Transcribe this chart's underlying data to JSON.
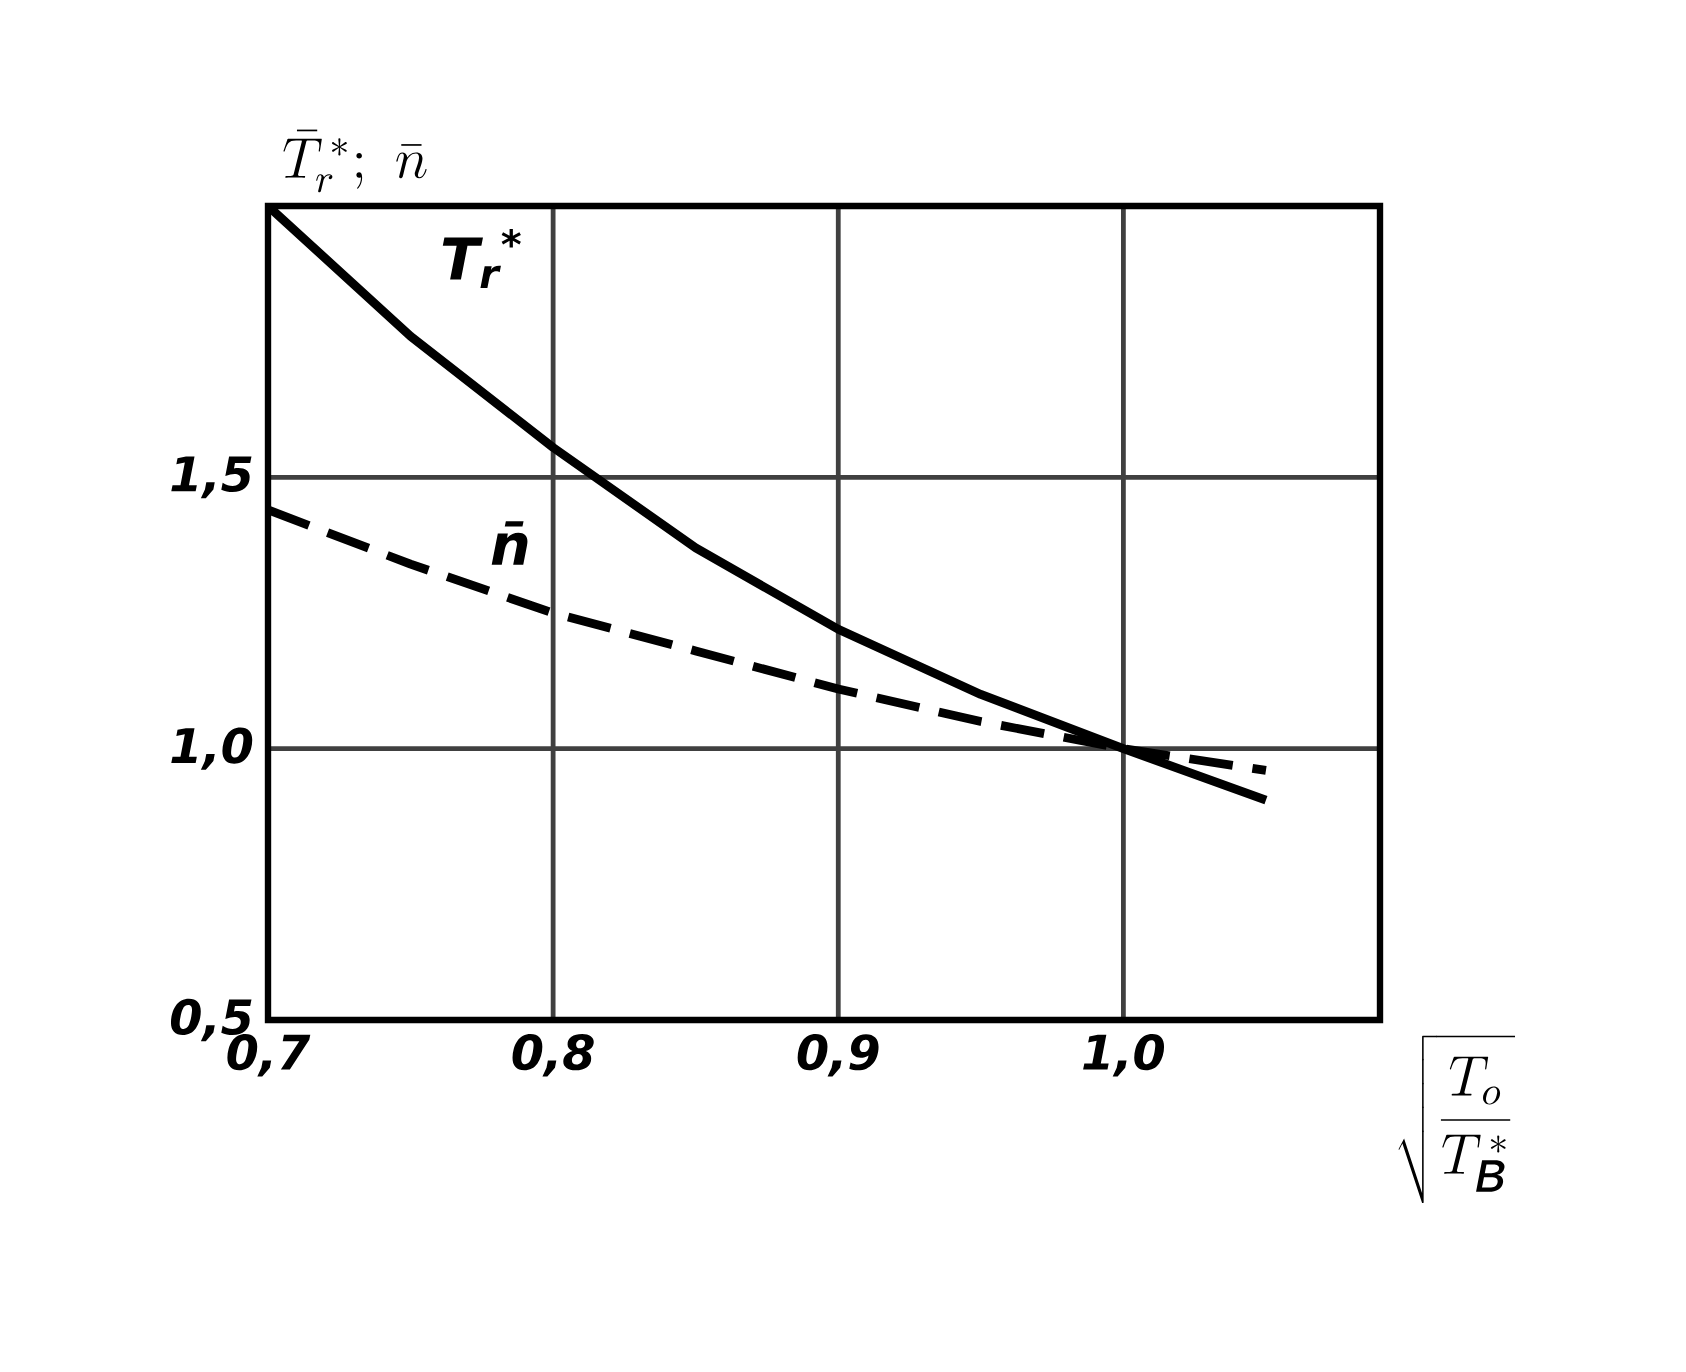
{
  "chart_data": {
    "type": "line",
    "ylabel": "\\bar{T}_r^{\\,*};\\ \\bar{n}",
    "xlabel": "\\sqrt{\\frac{T_o}{T_{\\mbox{\\itshape в}}^{\\,*}}}",
    "x": [
      0.7,
      0.75,
      0.8,
      0.85,
      0.9,
      0.95,
      1.0,
      1.05
    ],
    "series": [
      {
        "name": "T$_{r}$$^{*}$",
        "color": "#000000",
        "line_style": "solid",
        "values": [
          2.0,
          1.76,
          1.555,
          1.37,
          1.22,
          1.1,
          1.0,
          0.905
        ]
      },
      {
        "name": "n̄",
        "color": "#000000",
        "line_style": "dashed",
        "values": [
          1.44,
          1.34,
          1.25,
          1.18,
          1.11,
          1.05,
          1.0,
          0.96
        ]
      }
    ],
    "xlim": [
      0.7,
      1.09
    ],
    "ylim": [
      0.5,
      2.0
    ],
    "xticks": [
      {
        "value": 0.7,
        "label": "0,7"
      },
      {
        "value": 0.8,
        "label": "0,8"
      },
      {
        "value": 0.9,
        "label": "0,9"
      },
      {
        "value": 1.0,
        "label": "1,0"
      }
    ],
    "yticks": [
      {
        "value": 0.5,
        "label": "0,5"
      },
      {
        "value": 1.0,
        "label": "1,0"
      },
      {
        "value": 1.5,
        "label": "1,5"
      }
    ],
    "grid": true,
    "marker": "none"
  }
}
